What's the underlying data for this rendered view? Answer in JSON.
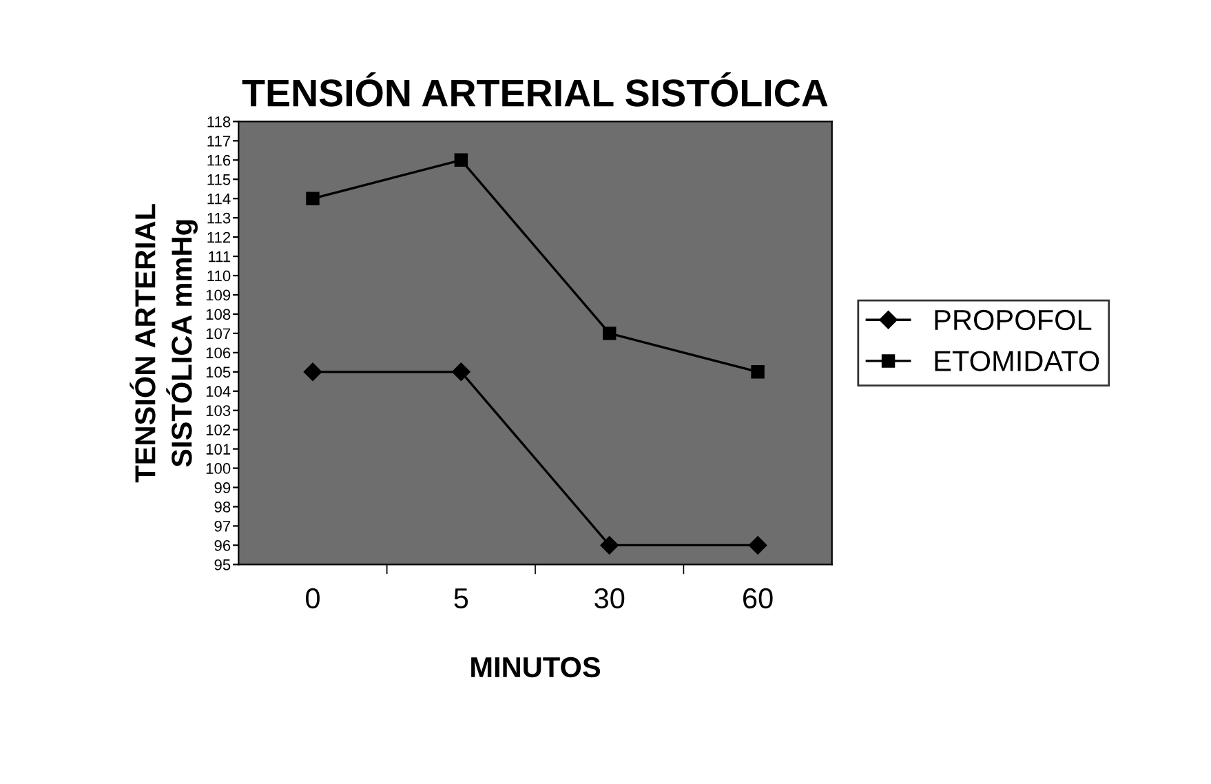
{
  "chart_data": {
    "type": "line",
    "title": "TENSIÓN ARTERIAL SISTÓLICA",
    "xlabel": "MINUTOS",
    "ylabel": "TENSIÓN ARTERIAL\nSISTÓLICA mmHg",
    "categories": [
      "0",
      "5",
      "30",
      "60"
    ],
    "series": [
      {
        "name": "PROPOFOL",
        "color": "#000000",
        "marker": "diamond",
        "values": [
          105,
          105,
          96,
          96
        ]
      },
      {
        "name": "ETOMIDATO",
        "color": "#000000",
        "marker": "square",
        "values": [
          114,
          116,
          107,
          105
        ]
      }
    ],
    "ylim": [
      95,
      118
    ],
    "yticks": [
      95,
      96,
      97,
      98,
      99,
      100,
      101,
      102,
      103,
      104,
      105,
      106,
      107,
      108,
      109,
      110,
      111,
      112,
      113,
      114,
      115,
      116,
      117,
      118
    ],
    "grid": false,
    "legend": "right",
    "line_style": "solid"
  }
}
